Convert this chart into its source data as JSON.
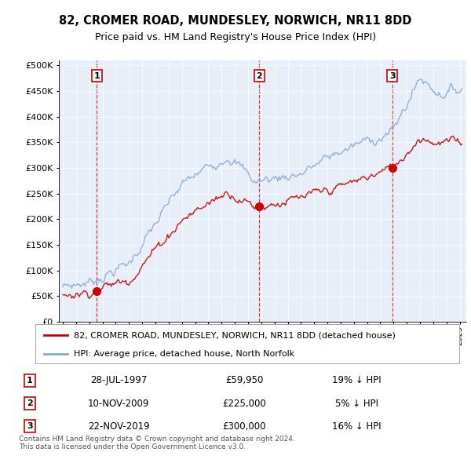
{
  "title": "82, CROMER ROAD, MUNDESLEY, NORWICH, NR11 8DD",
  "subtitle": "Price paid vs. HM Land Registry's House Price Index (HPI)",
  "property_label": "82, CROMER ROAD, MUNDESLEY, NORWICH, NR11 8DD (detached house)",
  "hpi_label": "HPI: Average price, detached house, North Norfolk",
  "sales": [
    {
      "date": 1997.57,
      "price": 59950,
      "label": "1"
    },
    {
      "date": 2009.86,
      "price": 225000,
      "label": "2"
    },
    {
      "date": 2019.9,
      "price": 300000,
      "label": "3"
    }
  ],
  "sale_info": [
    {
      "num": "1",
      "date": "28-JUL-1997",
      "price": "£59,950",
      "pct": "19% ↓ HPI"
    },
    {
      "num": "2",
      "date": "10-NOV-2009",
      "price": "£225,000",
      "pct": "5% ↓ HPI"
    },
    {
      "num": "3",
      "date": "22-NOV-2019",
      "price": "£300,000",
      "pct": "16% ↓ HPI"
    }
  ],
  "xmin": 1994.7,
  "xmax": 2025.5,
  "ymin": 0,
  "ymax": 510000,
  "yticks": [
    0,
    50000,
    100000,
    150000,
    200000,
    250000,
    300000,
    350000,
    400000,
    450000,
    500000
  ],
  "ytick_labels": [
    "£0",
    "£50K",
    "£100K",
    "£150K",
    "£200K",
    "£250K",
    "£300K",
    "£350K",
    "£400K",
    "£450K",
    "£500K"
  ],
  "property_color": "#cc0000",
  "hpi_color": "#88aadd",
  "sale_dot_color": "#cc0000",
  "vline_color": "#cc0000",
  "plot_bg": "#e8eef8",
  "footnote": "Contains HM Land Registry data © Crown copyright and database right 2024.\nThis data is licensed under the Open Government Licence v3.0."
}
